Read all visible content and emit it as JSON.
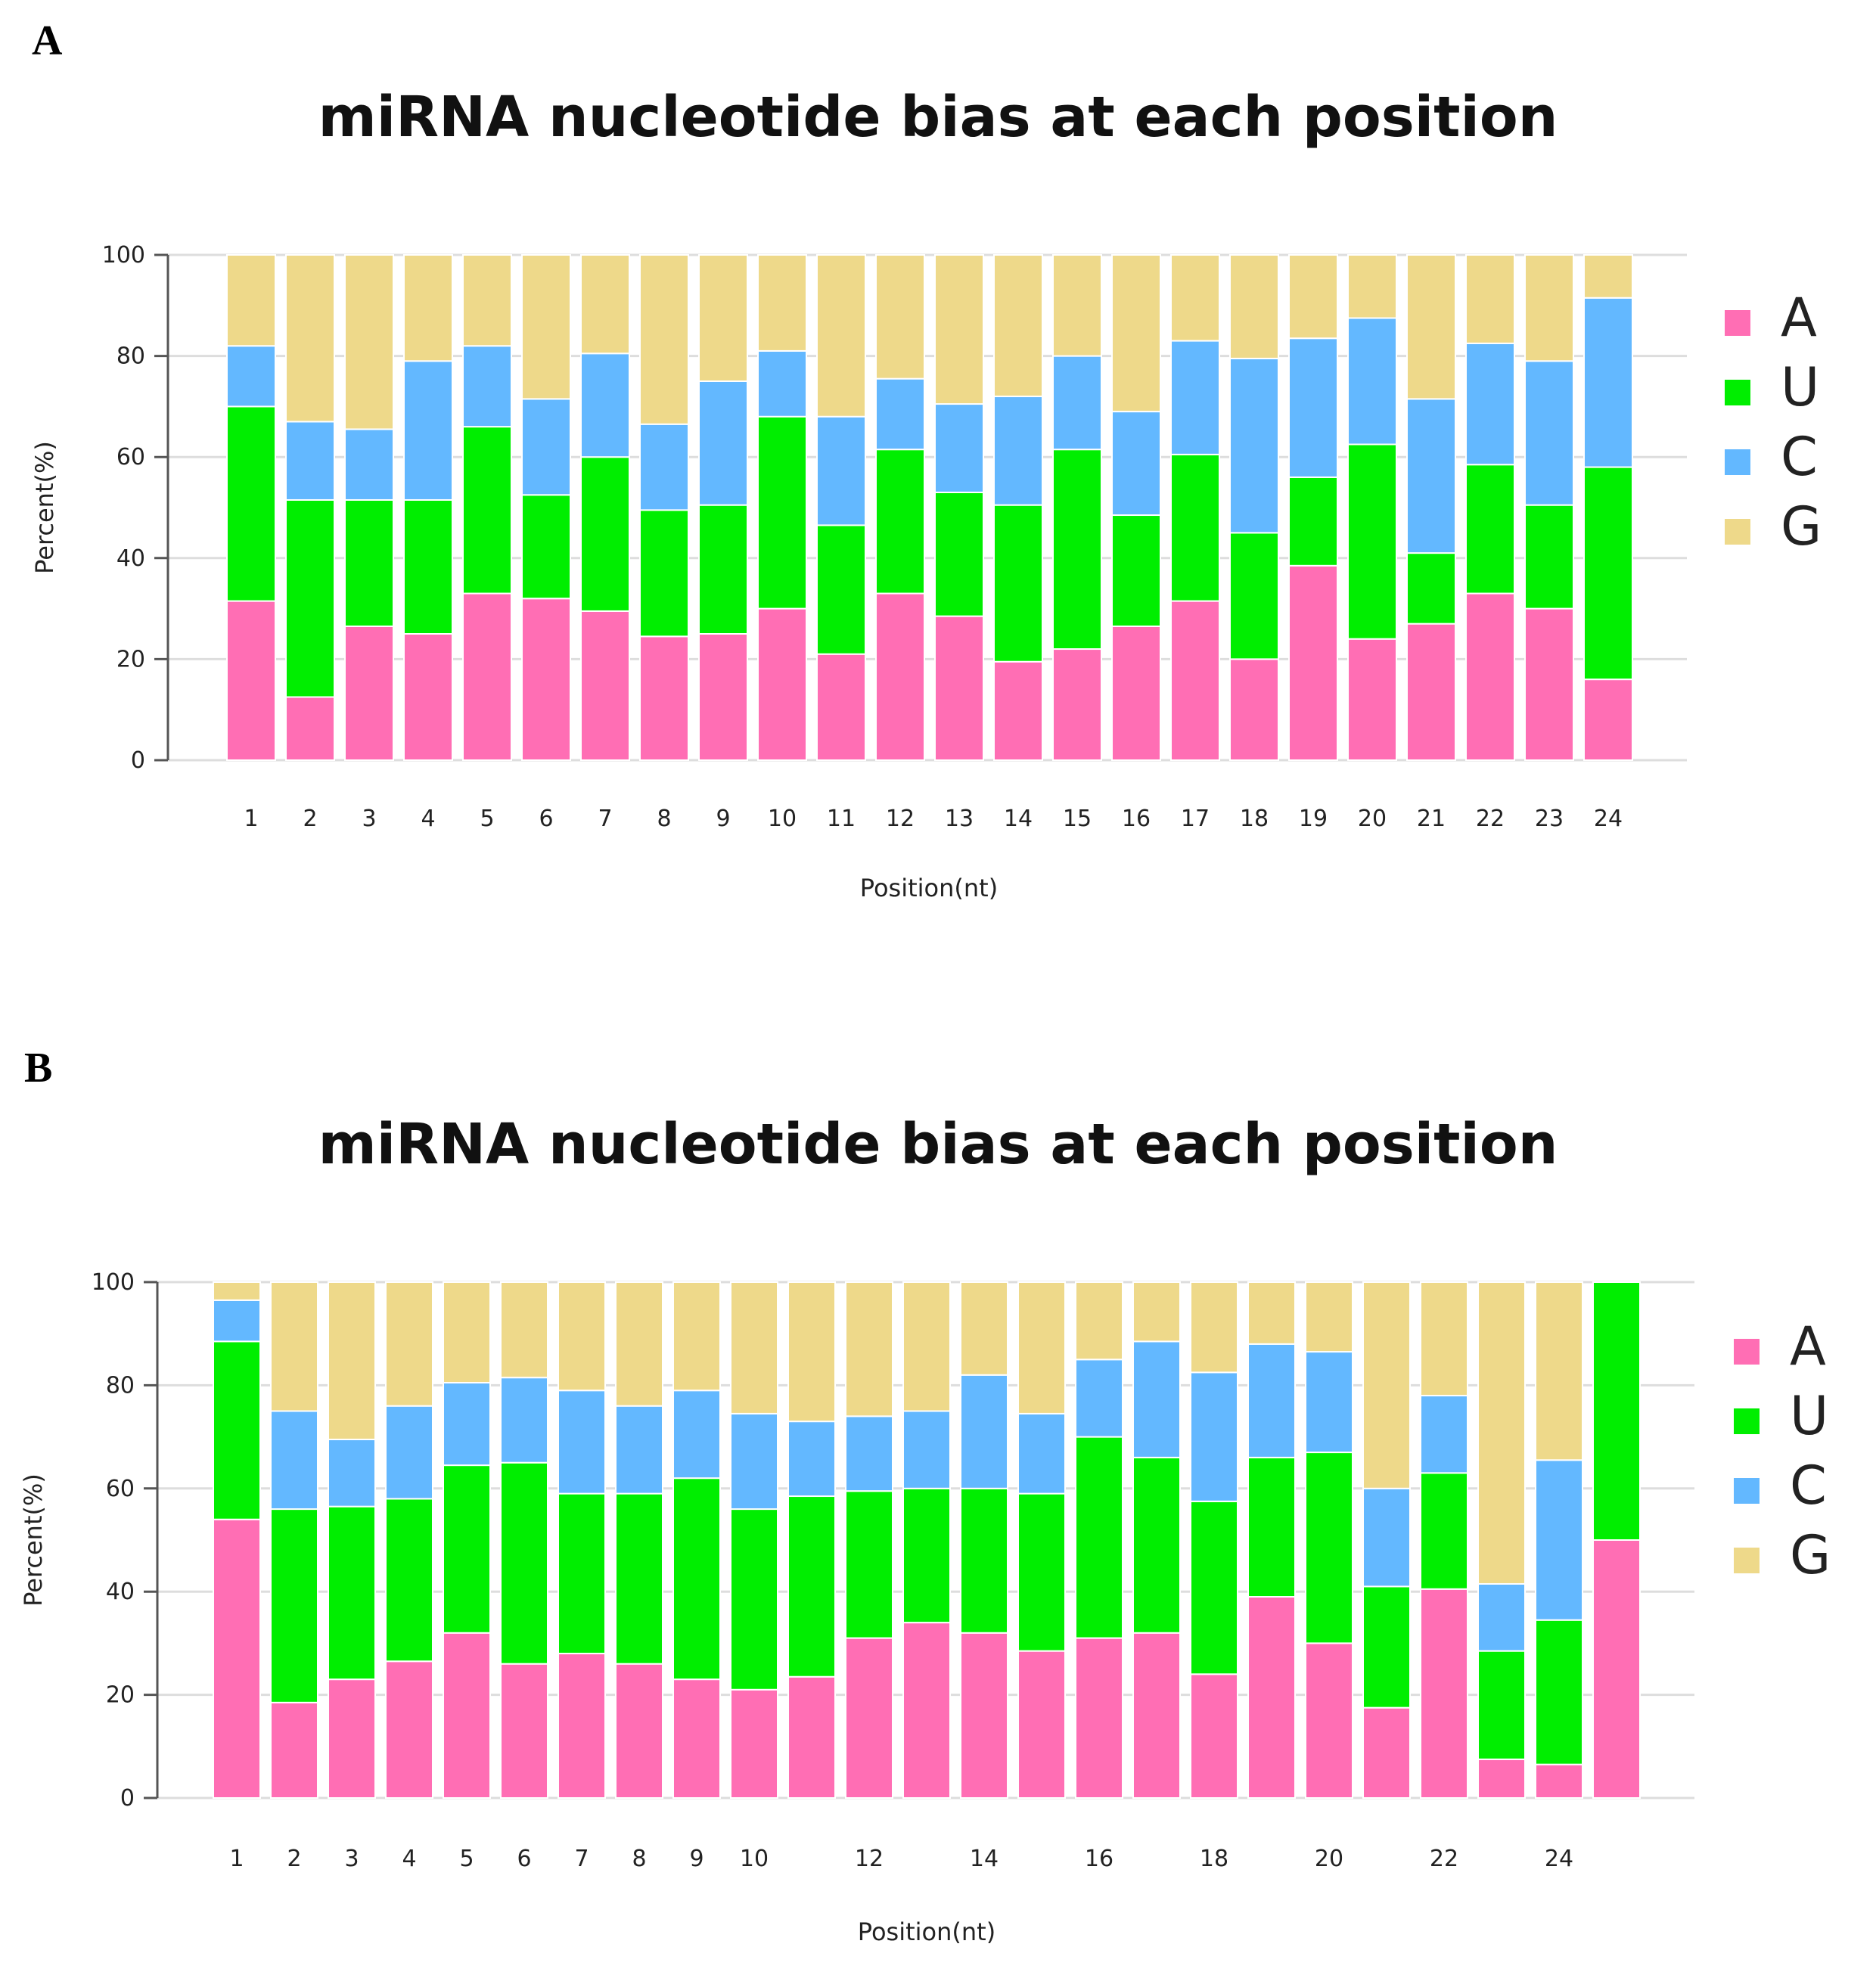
{
  "panels": [
    {
      "letter": "A",
      "title": "miRNA nucleotide bias at each position"
    },
    {
      "letter": "B",
      "title": "miRNA nucleotide bias at each position"
    }
  ],
  "colors": {
    "A": "#ff6eb4",
    "U": "#00ee00",
    "C": "#63b8ff",
    "G": "#eed98a"
  },
  "chart_data": [
    {
      "type": "bar",
      "stacked": true,
      "title": "miRNA nucleotide bias at each position",
      "xlabel": "Position(nt)",
      "ylabel": "Percent(%)",
      "ylim": [
        0,
        100
      ],
      "yticks": [
        0,
        20,
        40,
        60,
        80,
        100
      ],
      "grid": true,
      "legend": "right",
      "categories": [
        "1",
        "2",
        "3",
        "4",
        "5",
        "6",
        "7",
        "8",
        "9",
        "10",
        "11",
        "12",
        "13",
        "14",
        "15",
        "16",
        "17",
        "18",
        "19",
        "20",
        "21",
        "22",
        "23",
        "24"
      ],
      "tick_labels": [
        "1",
        "2",
        "3",
        "4",
        "5",
        "6",
        "7",
        "8",
        "9",
        "10",
        "11",
        "12",
        "13",
        "14",
        "15",
        "16",
        "17",
        "18",
        "19",
        "20",
        "21",
        "22",
        "23",
        "24"
      ],
      "series": [
        {
          "name": "A",
          "values": [
            31.5,
            12.5,
            26.5,
            25,
            33,
            32,
            29.5,
            24.5,
            25,
            30,
            21,
            33,
            28.5,
            19.5,
            22,
            26.5,
            31.5,
            20,
            38.5,
            24,
            27,
            33,
            30,
            16
          ]
        },
        {
          "name": "U",
          "values": [
            38.5,
            39,
            25,
            26.5,
            33,
            20.5,
            30.5,
            25,
            25.5,
            38,
            25.5,
            28.5,
            24.5,
            31,
            39.5,
            22,
            29,
            25,
            17.5,
            38.5,
            14,
            25.5,
            20.5,
            42
          ]
        },
        {
          "name": "C",
          "values": [
            12,
            15.5,
            14,
            27.5,
            16,
            19,
            20.5,
            17,
            24.5,
            13,
            21.5,
            14,
            17.5,
            21.5,
            18.5,
            20.5,
            22.5,
            34.5,
            27.5,
            25,
            30.5,
            24,
            28.5,
            33.5
          ]
        },
        {
          "name": "G",
          "values": [
            18,
            33,
            34.5,
            21,
            18,
            28.5,
            19.5,
            33.5,
            25,
            19,
            32,
            24.5,
            29.5,
            28,
            20,
            31,
            17,
            20.5,
            16.5,
            12.5,
            28.5,
            17.5,
            21,
            8.5
          ]
        }
      ]
    },
    {
      "type": "bar",
      "stacked": true,
      "title": "miRNA nucleotide bias at each position",
      "xlabel": "Position(nt)",
      "ylabel": "Percent(%)",
      "ylim": [
        0,
        100
      ],
      "yticks": [
        0,
        20,
        40,
        60,
        80,
        100
      ],
      "grid": true,
      "legend": "right",
      "categories": [
        "1",
        "2",
        "3",
        "4",
        "5",
        "6",
        "7",
        "8",
        "9",
        "10",
        "11",
        "12",
        "13",
        "14",
        "15",
        "16",
        "17",
        "18",
        "19",
        "20",
        "21",
        "22",
        "23",
        "24",
        "25"
      ],
      "tick_labels": [
        "1",
        "2",
        "3",
        "4",
        "5",
        "6",
        "7",
        "8",
        "9",
        "10",
        "",
        "12",
        "",
        "14",
        "",
        "16",
        "",
        "18",
        "",
        "20",
        "",
        "22",
        "",
        "24",
        ""
      ],
      "series": [
        {
          "name": "A",
          "values": [
            54,
            18.5,
            23,
            26.5,
            32,
            26,
            28,
            26,
            23,
            21,
            23.5,
            31,
            34,
            32,
            28.5,
            31,
            32,
            24,
            39,
            30,
            17.5,
            40.5,
            7.5,
            6.5,
            50
          ]
        },
        {
          "name": "U",
          "values": [
            34.5,
            37.5,
            33.5,
            31.5,
            32.5,
            39,
            31,
            33,
            39,
            35,
            35,
            28.5,
            26,
            28,
            30.5,
            39,
            34,
            33.5,
            27,
            37,
            23.5,
            22.5,
            21,
            28,
            50
          ]
        },
        {
          "name": "C",
          "values": [
            8,
            19,
            13,
            18,
            16,
            16.5,
            20,
            17,
            17,
            18.5,
            14.5,
            14.5,
            15,
            22,
            15.5,
            15,
            22.5,
            25,
            22,
            19.5,
            19,
            15,
            13,
            31,
            0
          ]
        },
        {
          "name": "G",
          "values": [
            3.5,
            25,
            30.5,
            24,
            19.5,
            18.5,
            21,
            24,
            21,
            25.5,
            27,
            26,
            25,
            18,
            25.5,
            15,
            11.5,
            17.5,
            12,
            13.5,
            40,
            22,
            58.5,
            34.5,
            0
          ]
        }
      ]
    }
  ]
}
